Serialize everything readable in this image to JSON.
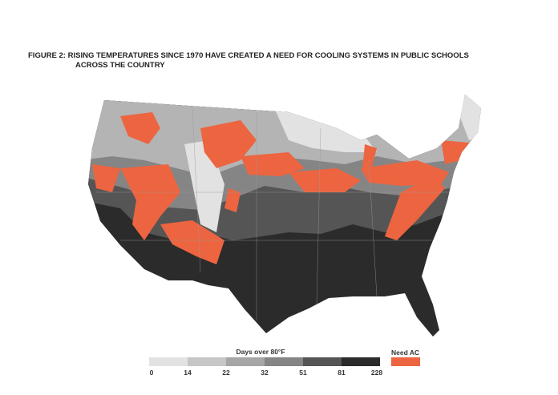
{
  "title": {
    "line1": "FIGURE 2: RISING TEMPERATURES SINCE 1970 HAVE CREATED A NEED FOR COOLING SYSTEMS IN PUBLIC SCHOOLS",
    "line2": "ACROSS THE COUNTRY"
  },
  "legend": {
    "title": "Days over 80°F",
    "ticks": [
      0,
      14,
      22,
      32,
      51,
      81,
      228
    ],
    "colors": [
      "#e2e2e2",
      "#c6c6c6",
      "#a6a6a6",
      "#858585",
      "#555555",
      "#2b2b2b"
    ],
    "need_ac": {
      "label": "Need AC",
      "color": "#ec6540"
    }
  }
}
